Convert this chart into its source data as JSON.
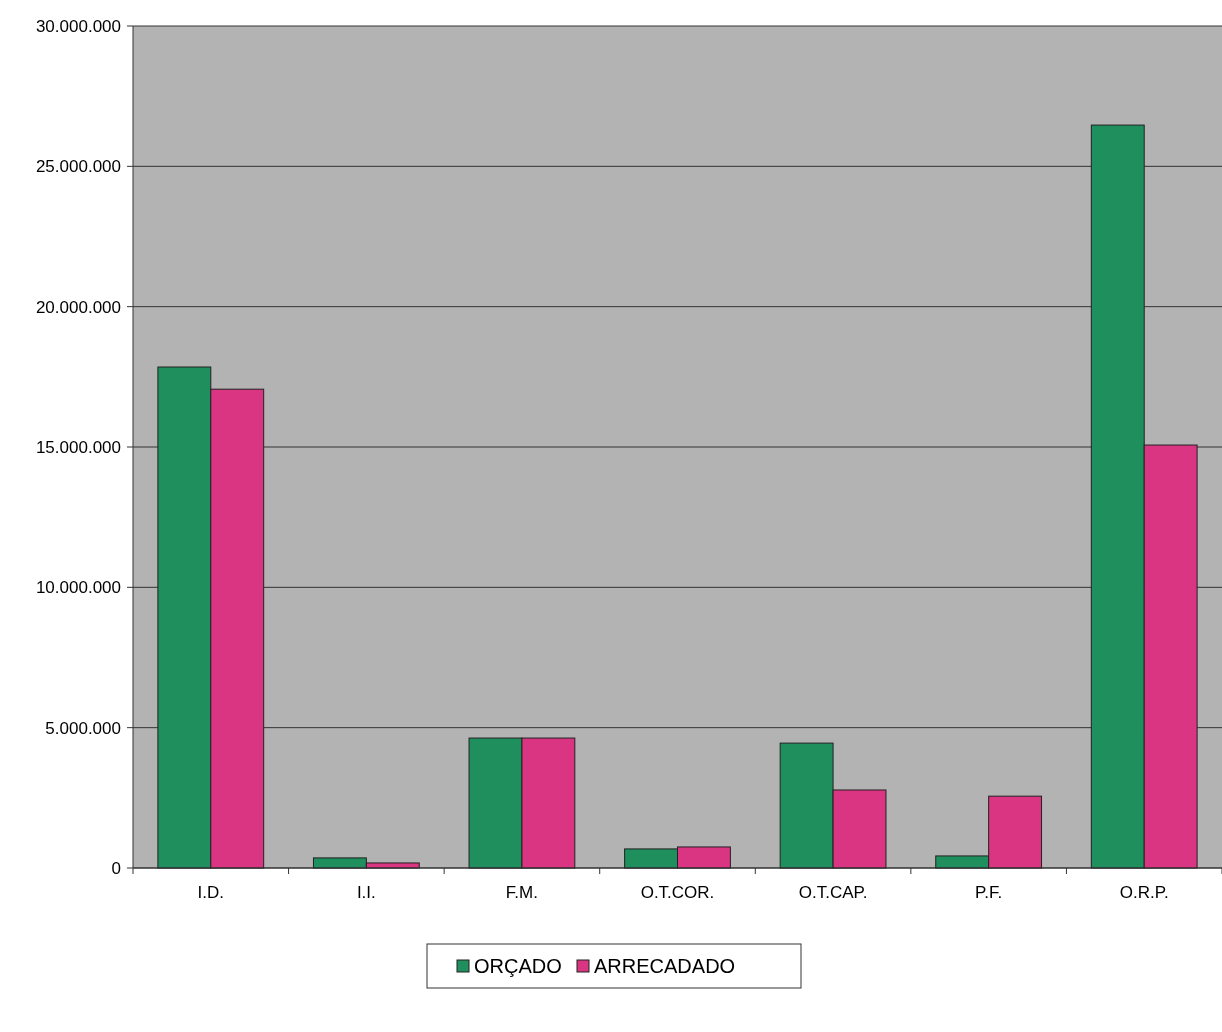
{
  "chart_data": {
    "type": "bar",
    "categories": [
      "I.D.",
      "I.I.",
      "F.M.",
      "O.T.COR.",
      "O.T.CAP.",
      "P.F.",
      "O.R.P."
    ],
    "series": [
      {
        "name": "ORÇADO",
        "color": "#1f8f5e",
        "values": [
          17850000,
          360000,
          4630000,
          680000,
          4450000,
          430000,
          26470000
        ]
      },
      {
        "name": "ARRECADADO",
        "color": "#d93582",
        "values": [
          17060000,
          180000,
          4630000,
          750000,
          2780000,
          2560000,
          15070000
        ]
      }
    ],
    "ylim": [
      0,
      30000000
    ],
    "yticks": [
      0,
      {
        "value": 5000000,
        "label": "5.000.000"
      },
      {
        "value": 10000000,
        "label": "10.000.000"
      },
      {
        "value": 15000000,
        "label": "15.000.000"
      },
      {
        "value": 20000000,
        "label": "20.000.000"
      },
      {
        "value": 25000000,
        "label": "25.000.000"
      },
      {
        "value": 30000000,
        "label": "30.000.000"
      }
    ],
    "grid": "y",
    "legend": "bottom"
  }
}
